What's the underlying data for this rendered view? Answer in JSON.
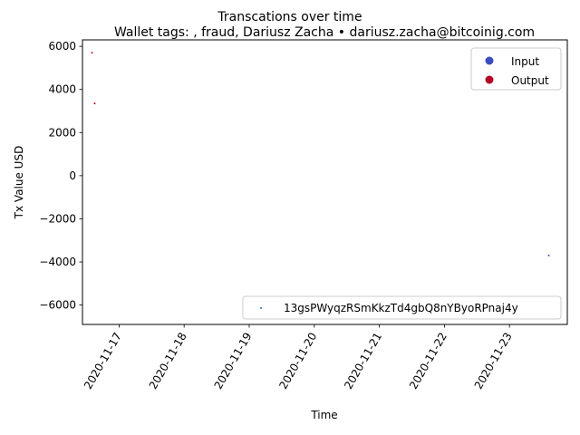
{
  "chart_data": {
    "type": "scatter",
    "title": "Transcations over time",
    "subtitle": "Wallet tags: , fraud, Dariusz Zacha • dariusz.zacha@bitcoinig.com",
    "xlabel": "Time",
    "ylabel": "Tx Value USD",
    "x_ticks": [
      "2020-11-17",
      "2020-11-18",
      "2020-11-19",
      "2020-11-20",
      "2020-11-21",
      "2020-11-22",
      "2020-11-23"
    ],
    "y_ticks": [
      "6000",
      "4000",
      "2000",
      "0",
      "−2000",
      "−4000",
      "−6000"
    ],
    "xlim": [
      "2020-11-16 10:30",
      "2020-11-23 21:20"
    ],
    "ylim": [
      -6900,
      6300
    ],
    "grid": false,
    "legend_type": {
      "placement": "upper right",
      "entries": [
        {
          "name": "Input",
          "color": "#3b4cc0"
        },
        {
          "name": "Output",
          "color": "#b40426"
        }
      ]
    },
    "legend_wallet": {
      "placement": "lower right",
      "entries": [
        {
          "name": "13gsPWyqzRSmKkzTd4gbQ8nYByoRPnaj4y",
          "color": "#1f77b4"
        }
      ]
    },
    "points": [
      {
        "x": "2020-11-16 14:00",
        "y": 5700,
        "type": "Output",
        "color": "#b40426"
      },
      {
        "x": "2020-11-16 15:00",
        "y": 3350,
        "type": "Output",
        "color": "#b40426"
      },
      {
        "x": "2020-11-23 14:30",
        "y": -3700,
        "type": "Input",
        "color": "#3b4cc0"
      }
    ]
  }
}
